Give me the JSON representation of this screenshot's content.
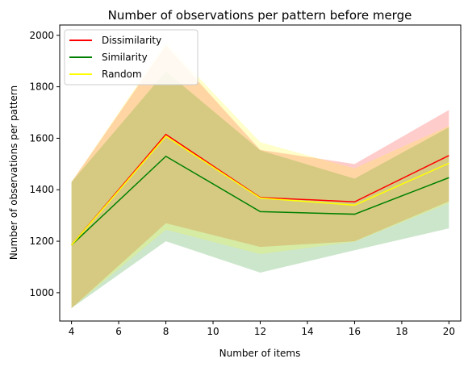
{
  "chart_data": {
    "type": "line",
    "title": "Number of observations per pattern before merge",
    "xlabel": "Number of items",
    "ylabel": "Number of observations per pattern",
    "xlim": [
      3.5,
      20.5
    ],
    "ylim": [
      890,
      2040
    ],
    "x_ticks": [
      4,
      6,
      8,
      10,
      12,
      14,
      16,
      18,
      20
    ],
    "y_ticks": [
      1000,
      1200,
      1400,
      1600,
      1800,
      2000
    ],
    "legend_position": "top-left",
    "grid": false,
    "x": [
      4,
      8,
      12,
      16,
      20
    ],
    "series": [
      {
        "name": "Dissimilarity",
        "color": "#ff0000",
        "band_color": "#ff0000",
        "values": [
          1185,
          1615,
          1370,
          1353,
          1533
        ],
        "band_lower": [
          940,
          1270,
          1178,
          1200,
          1355
        ],
        "band_upper": [
          1430,
          1960,
          1555,
          1500,
          1710
        ]
      },
      {
        "name": "Similarity",
        "color": "#008000",
        "band_color": "#008000",
        "values": [
          1185,
          1530,
          1315,
          1305,
          1447
        ],
        "band_lower": [
          940,
          1200,
          1078,
          1165,
          1250
        ],
        "band_upper": [
          1430,
          1860,
          1553,
          1443,
          1643
        ]
      },
      {
        "name": "Random",
        "color": "#ffff00",
        "band_color": "#ffff00",
        "values": [
          1185,
          1608,
          1368,
          1340,
          1503
        ],
        "band_lower": [
          940,
          1245,
          1150,
          1198,
          1348
        ],
        "band_upper": [
          1430,
          1970,
          1585,
          1483,
          1648
        ]
      }
    ]
  }
}
